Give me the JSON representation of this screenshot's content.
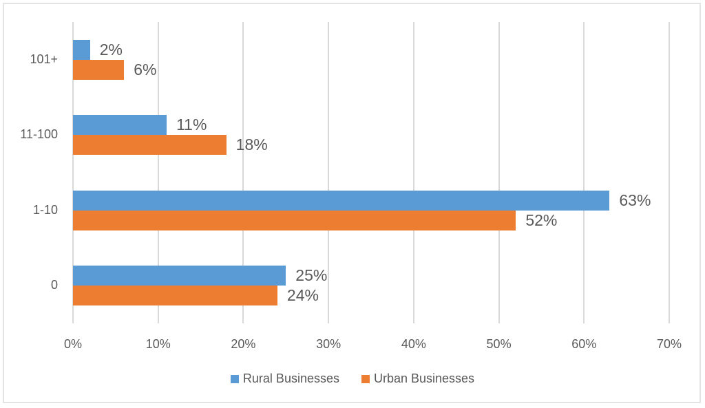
{
  "chart_data": {
    "type": "bar",
    "orientation": "horizontal",
    "title": "",
    "xlabel": "",
    "ylabel": "",
    "categories": [
      "0",
      "1-10",
      "11-100",
      "101+"
    ],
    "series": [
      {
        "name": "Rural Businesses",
        "color": "#5b9bd5",
        "values": [
          25,
          63,
          11,
          2
        ],
        "labels": [
          "25%",
          "63%",
          "11%",
          "2%"
        ]
      },
      {
        "name": "Urban Businesses",
        "color": "#ed7d31",
        "values": [
          24,
          52,
          18,
          6
        ],
        "labels": [
          "24%",
          "52%",
          "18%",
          "6%"
        ]
      }
    ],
    "xlim": [
      0,
      70
    ],
    "x_ticks": [
      "0%",
      "10%",
      "20%",
      "30%",
      "40%",
      "50%",
      "60%",
      "70%"
    ],
    "grid": "vertical",
    "legend_position": "bottom",
    "data_labels": true
  }
}
